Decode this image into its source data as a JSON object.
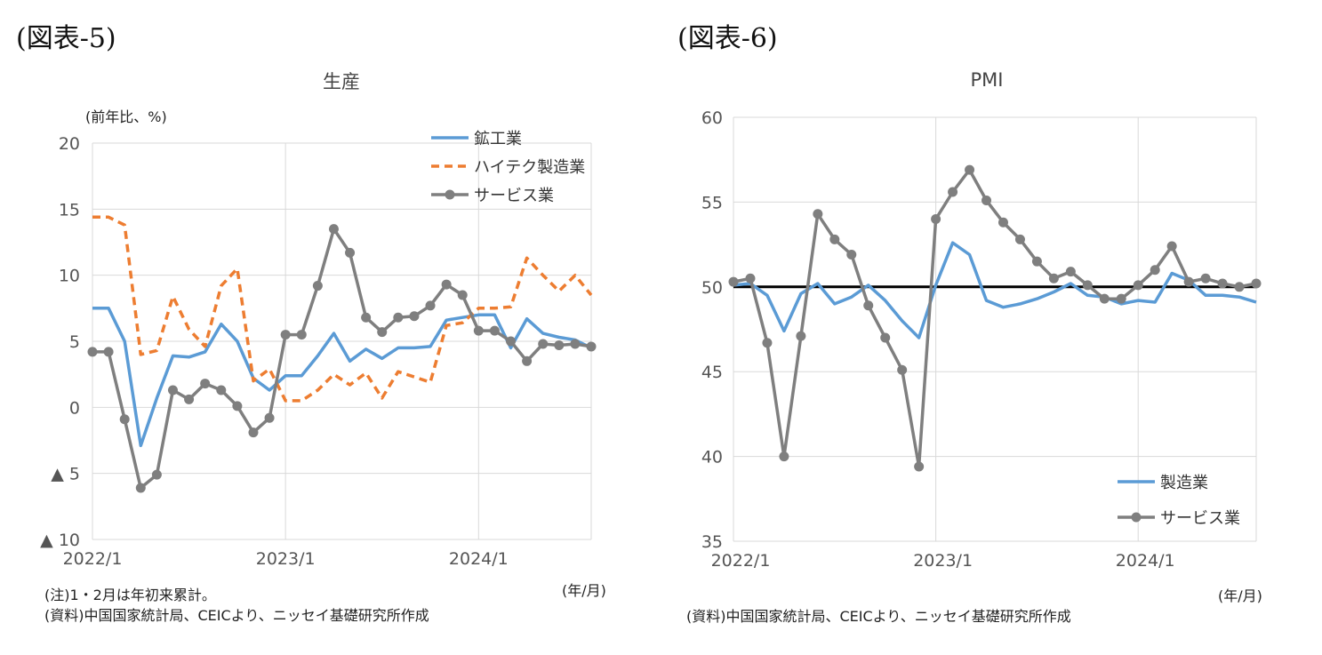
{
  "left": {
    "figure_label": "(図表-5)",
    "unit_label": "(前年比、%)",
    "xaxis_unit": "(年/月)",
    "note1": "(注)1・2月は年初来累計。",
    "note2": "(資料)中国国家統計局、CEICより、ニッセイ基礎研究所作成"
  },
  "right": {
    "figure_label": "(図表-6)",
    "xaxis_unit": "(年/月)",
    "note1": "(資料)中国国家統計局、CEICより、ニッセイ基礎研究所作成"
  },
  "colors": {
    "blue": "#5b9bd5",
    "orange": "#ed7d31",
    "gray": "#7f7f7f",
    "black": "#000000",
    "grid": "#d9d9d9"
  },
  "chart_data": [
    {
      "type": "line",
      "title": "生産",
      "ylim": [
        -10,
        20
      ],
      "yticks": [
        20,
        15,
        10,
        5,
        0,
        -5,
        -10
      ],
      "ytick_labels": [
        "20",
        "15",
        "10",
        "5",
        "0",
        "▲ 5",
        "▲ 10"
      ],
      "x_categories_count": 32,
      "xtick_labels": [
        "2022/1",
        "2023/1",
        "2024/1"
      ],
      "xtick_index": [
        0,
        12,
        24
      ],
      "grid": "vertical at year boundaries, horizontal at each y tick",
      "legend": "top-right",
      "series": [
        {
          "name": "鉱工業",
          "style": "solid",
          "color": "#5b9bd5",
          "values": [
            7.5,
            7.5,
            5.0,
            -2.9,
            0.7,
            3.9,
            3.8,
            4.2,
            6.3,
            5.0,
            2.2,
            1.3,
            2.4,
            2.4,
            3.9,
            5.6,
            3.5,
            4.4,
            3.7,
            4.5,
            4.5,
            4.6,
            6.6,
            6.8,
            7.0,
            7.0,
            4.5,
            6.7,
            5.6,
            5.3,
            5.1,
            4.5
          ]
        },
        {
          "name": "ハイテク製造業",
          "style": "dashed",
          "color": "#ed7d31",
          "values": [
            14.4,
            14.4,
            13.8,
            4.0,
            4.3,
            8.4,
            5.9,
            4.6,
            9.2,
            10.5,
            2.0,
            2.9,
            0.5,
            0.5,
            1.3,
            2.5,
            1.7,
            2.6,
            0.7,
            2.7,
            2.3,
            1.9,
            6.2,
            6.4,
            7.5,
            7.5,
            7.6,
            11.3,
            10.0,
            8.8,
            10.0,
            8.5
          ]
        },
        {
          "name": "サービス業",
          "style": "solid-markers",
          "color": "#7f7f7f",
          "values": [
            4.2,
            4.2,
            -0.9,
            -6.1,
            -5.1,
            1.3,
            0.6,
            1.8,
            1.3,
            0.1,
            -1.9,
            -0.8,
            5.5,
            5.5,
            9.2,
            13.5,
            11.7,
            6.8,
            5.7,
            6.8,
            6.9,
            7.7,
            9.3,
            8.5,
            5.8,
            5.8,
            5.0,
            3.5,
            4.8,
            4.7,
            4.8,
            4.6
          ]
        }
      ]
    },
    {
      "type": "line",
      "title": "PMI",
      "ylim": [
        35,
        60
      ],
      "yticks": [
        60,
        55,
        50,
        45,
        40,
        35
      ],
      "ytick_labels": [
        "60",
        "55",
        "50",
        "45",
        "40",
        "35"
      ],
      "x_categories_count": 32,
      "xtick_labels": [
        "2022/1",
        "2023/1",
        "2024/1"
      ],
      "xtick_index": [
        0,
        12,
        24
      ],
      "grid": "vertical at year boundaries, horizontal at each y tick",
      "legend": "bottom-right",
      "reference_line": 50,
      "series": [
        {
          "name": "製造業",
          "style": "solid",
          "color": "#5b9bd5",
          "values": [
            50.1,
            50.2,
            49.5,
            47.4,
            49.6,
            50.2,
            49.0,
            49.4,
            50.1,
            49.2,
            48.0,
            47.0,
            50.1,
            52.6,
            51.9,
            49.2,
            48.8,
            49.0,
            49.3,
            49.7,
            50.2,
            49.5,
            49.4,
            49.0,
            49.2,
            49.1,
            50.8,
            50.4,
            49.5,
            49.5,
            49.4,
            49.1
          ]
        },
        {
          "name": "サービス業",
          "style": "solid-markers",
          "color": "#7f7f7f",
          "values": [
            50.3,
            50.5,
            46.7,
            40.0,
            47.1,
            54.3,
            52.8,
            51.9,
            48.9,
            47.0,
            45.1,
            39.4,
            54.0,
            55.6,
            56.9,
            55.1,
            53.8,
            52.8,
            51.5,
            50.5,
            50.9,
            50.1,
            49.3,
            49.3,
            50.1,
            51.0,
            52.4,
            50.3,
            50.5,
            50.2,
            50.0,
            50.2
          ]
        }
      ]
    }
  ]
}
